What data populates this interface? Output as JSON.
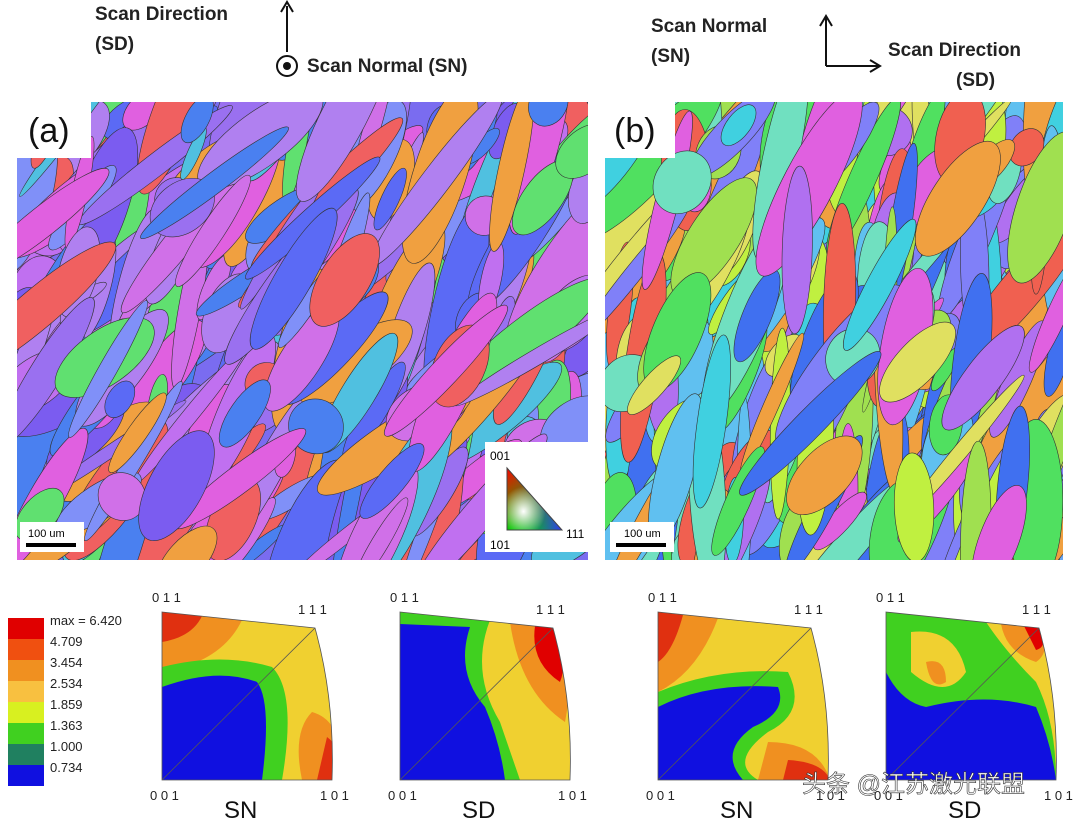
{
  "header_a": {
    "up_label": [
      "Scan Direction",
      "(SD)"
    ],
    "out_label": "Scan Normal (SN)"
  },
  "header_b": {
    "up_label": [
      "Scan Normal",
      "(SN)"
    ],
    "right_label": [
      "Scan Direction",
      "(SD)"
    ]
  },
  "maps": [
    {
      "label": "(a)",
      "scale_bar": "100 um"
    },
    {
      "label": "(b)",
      "scale_bar": "100 um"
    }
  ],
  "color_key": {
    "top": "001",
    "bottom_left": "101",
    "bottom_right": "111"
  },
  "legend": {
    "max": "max = 6.420",
    "levels": [
      "4.709",
      "3.454",
      "2.534",
      "1.859",
      "1.363",
      "1.000",
      "0.734"
    ]
  },
  "pole_figures": [
    {
      "axis": "SN",
      "top_left": "0 1 1",
      "top_right": "1 1 1",
      "bottom_left": "0 0 1",
      "bottom_right": "1 0 1"
    },
    {
      "axis": "SD",
      "top_left": "0 1 1",
      "top_right": "1 1 1",
      "bottom_left": "0 0 1",
      "bottom_right": "1 0 1"
    },
    {
      "axis": "SN",
      "top_left": "0 1 1",
      "top_right": "1 1 1",
      "bottom_left": "0 0 1",
      "bottom_right": "1 0 1"
    },
    {
      "axis": "SD",
      "top_left": "0 1 1",
      "top_right": "1 1 1",
      "bottom_left": "0 0 1",
      "bottom_right": "1 0 1"
    }
  ],
  "watermark": "头条 @江苏激光联盟"
}
